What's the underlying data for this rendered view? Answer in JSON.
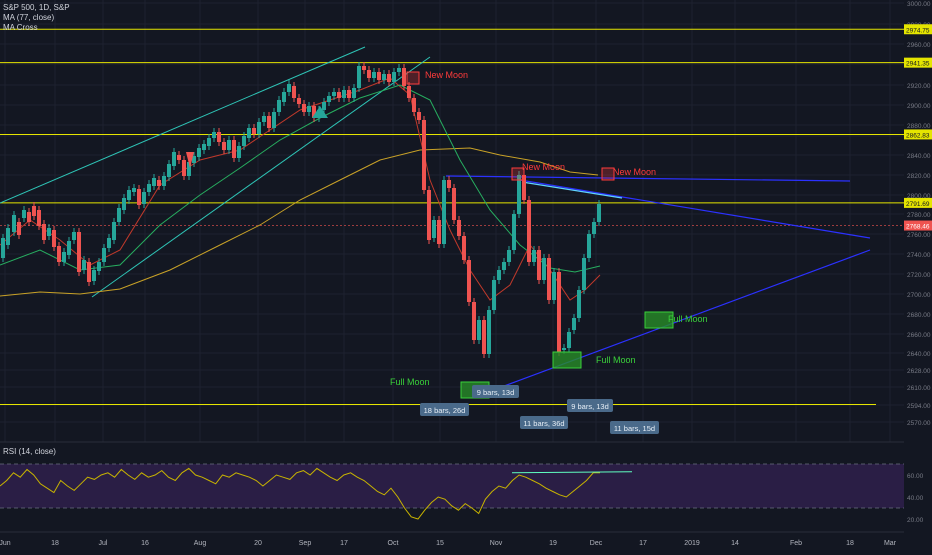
{
  "header": {
    "symbol_line": "S&P 500, 1D, S&P",
    "indicator_1": "MA (77, close)",
    "indicator_2": "MA Cross"
  },
  "rsi": {
    "label": "RSI (14, close)"
  },
  "colors": {
    "background": "#131722",
    "up": "#26a69a",
    "down": "#ef5350",
    "yellow_line": "#e5e500",
    "channel": "#2ec4b6",
    "blue_line": "#2b31ff",
    "ma77": "#c9a227",
    "ma_fast": "#c0392b",
    "ma_slow": "#27ae60",
    "rsi_line": "#c8b400",
    "rsi_band": "#2a1e45",
    "moon_red": "#ff3b3b",
    "moon_green": "#3ad13a"
  },
  "chart_data": {
    "type": "candlestick",
    "title": "S&P 500, 1D, S&P",
    "ylim": [
      2554,
      3000
    ],
    "x_ticks": [
      "Jun",
      "18",
      "Jul",
      "16",
      "Aug",
      "20",
      "Sep",
      "17",
      "Oct",
      "15",
      "Nov",
      "19",
      "Dec",
      "17",
      "2019",
      "14",
      "Feb",
      "18",
      "Mar"
    ],
    "y_ticks": [
      3000,
      2980,
      2960,
      2940,
      2920,
      2900,
      2880,
      2860,
      2840,
      2820,
      2800,
      2780,
      2760,
      2740,
      2720,
      2700,
      2680,
      2660,
      2640,
      2628,
      2610,
      2594,
      2570
    ],
    "price_tags": [
      {
        "value": 2974.75,
        "label": "2974.75",
        "kind": "yellow"
      },
      {
        "value": 2941.35,
        "label": "2941.35",
        "kind": "yellow"
      },
      {
        "value": 2862.83,
        "label": "2862.83",
        "kind": "yellow"
      },
      {
        "value": 2791.69,
        "label": "2791.69",
        "kind": "yellow"
      },
      {
        "value": 2768.46,
        "label": "2768.46",
        "kind": "last"
      }
    ],
    "horizontal_levels": [
      2974.75,
      2941.35,
      2862.83,
      2791.69,
      2594.5
    ],
    "moon_labels": [
      {
        "text": "New Moon",
        "kind": "new"
      },
      {
        "text": "New Moon",
        "kind": "new"
      },
      {
        "text": "New Moon",
        "kind": "new"
      },
      {
        "text": "Full Moon",
        "kind": "full"
      },
      {
        "text": "Full Moon",
        "kind": "full"
      },
      {
        "text": "Full Moon",
        "kind": "full"
      }
    ],
    "bars_labels": [
      "9 bars, 13d",
      "18 bars, 26d",
      "9 bars, 13d",
      "11 bars, 36d",
      "11 bars, 15d"
    ],
    "rsi": {
      "title": "RSI (14, close)",
      "ylim": [
        10,
        90
      ],
      "ticks": [
        60.0,
        40.0,
        20.0
      ],
      "tick_labels": [
        "60.00",
        "40.00",
        "20.00"
      ],
      "bands": [
        30,
        70
      ]
    }
  }
}
